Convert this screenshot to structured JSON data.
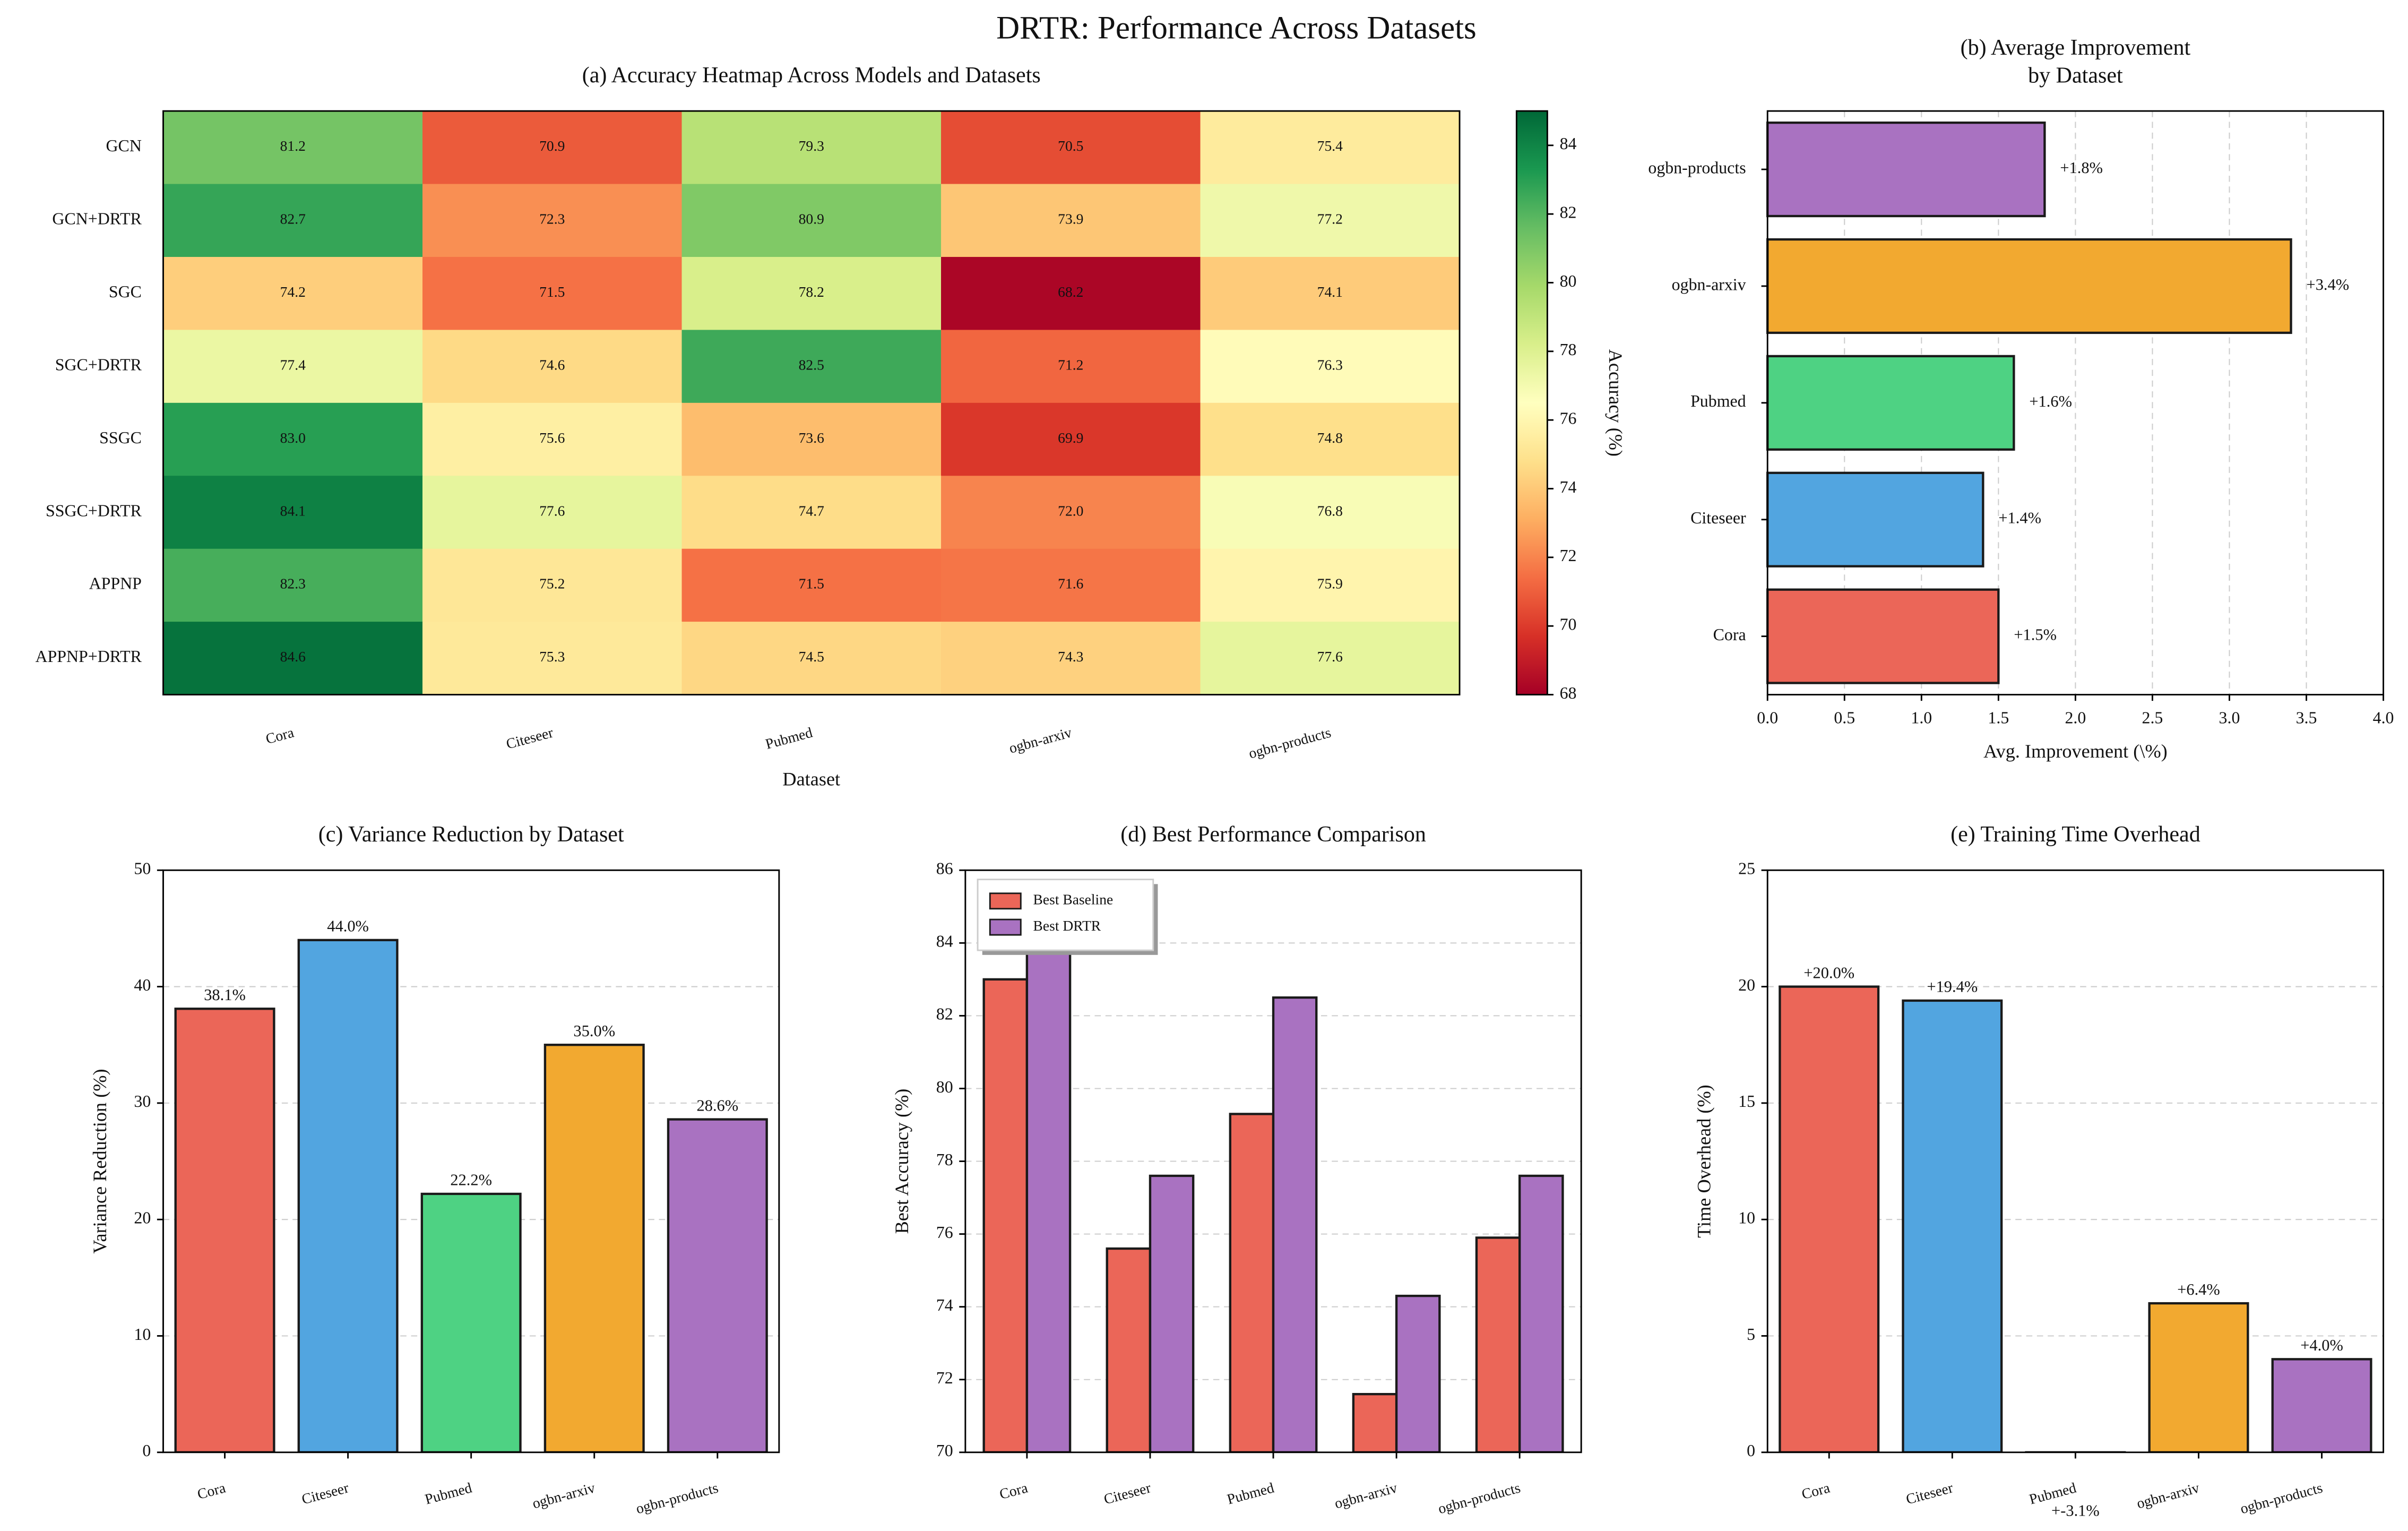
{
  "title": "DRTR: Performance Across Datasets",
  "chart_data": [
    {
      "type": "heatmap",
      "title": "(a) Accuracy Heatmap Across Models and Datasets",
      "x_categories": [
        "Cora",
        "Citeseer",
        "Pubmed",
        "ogbn-arxiv",
        "ogbn-products"
      ],
      "y_categories": [
        "GCN",
        "GCN+DRTR",
        "SGC",
        "SGC+DRTR",
        "SSGC",
        "SSGC+DRTR",
        "APPNP",
        "APPNP+DRTR"
      ],
      "values": [
        [
          81.2,
          70.9,
          79.3,
          70.5,
          75.4
        ],
        [
          82.7,
          72.3,
          80.9,
          73.9,
          77.2
        ],
        [
          74.2,
          71.5,
          78.2,
          68.2,
          74.1
        ],
        [
          77.4,
          74.6,
          82.5,
          71.2,
          76.3
        ],
        [
          83.0,
          75.6,
          73.6,
          69.9,
          74.8
        ],
        [
          84.1,
          77.6,
          74.7,
          72.0,
          76.8
        ],
        [
          82.3,
          75.2,
          71.5,
          71.6,
          75.9
        ],
        [
          84.6,
          75.3,
          74.5,
          74.3,
          77.6
        ]
      ],
      "value_labels": [
        [
          "81.2",
          "70.9",
          "79.3",
          "70.5",
          "75.4"
        ],
        [
          "82.7",
          "72.3",
          "80.9",
          "73.9",
          "77.2"
        ],
        [
          "74.2",
          "71.5",
          "78.2",
          "68.2",
          "74.1"
        ],
        [
          "77.4",
          "74.6",
          "82.5",
          "71.2",
          "76.3"
        ],
        [
          "83.0",
          "75.6",
          "73.6",
          "69.9",
          "74.8"
        ],
        [
          "84.1",
          "77.6",
          "74.7",
          "72.0",
          "76.8"
        ],
        [
          "82.3",
          "75.2",
          "71.5",
          "71.6",
          "75.9"
        ],
        [
          "84.6",
          "75.3",
          "74.5",
          "74.3",
          "77.6"
        ]
      ],
      "xlabel": "Dataset",
      "colormap": "RdYlGn",
      "colorbar_label": "Accuracy (%)",
      "zlim": [
        68,
        85
      ],
      "zticks": [
        68,
        70,
        72,
        74,
        76,
        78,
        80,
        82,
        84
      ]
    },
    {
      "type": "barh",
      "title": "(b) Average Improvement\nby Dataset",
      "categories": [
        "Cora",
        "Citeseer",
        "Pubmed",
        "ogbn-arxiv",
        "ogbn-products"
      ],
      "values": [
        1.5,
        1.4,
        1.6,
        3.4,
        1.8
      ],
      "value_labels": [
        "+1.5%",
        "+1.4%",
        "+1.6%",
        "+3.4%",
        "+1.8%"
      ],
      "colors": [
        "#eb6658",
        "#52a5e0",
        "#4ed283",
        "#f2a930",
        "#a972c1"
      ],
      "xlabel": "Avg. Improvement (\\%)",
      "xlim": [
        0,
        4
      ],
      "xticks": [
        {
          "value": 0,
          "label": "0.0"
        },
        0.5,
        {
          "value": 1,
          "label": "1.0"
        },
        1.5,
        {
          "value": 2,
          "label": "2.0"
        },
        2.5,
        {
          "value": 3,
          "label": "3.0"
        },
        3.5,
        {
          "value": 4,
          "label": "4.0"
        }
      ],
      "grid": true
    },
    {
      "type": "bar",
      "title": "(c) Variance Reduction by Dataset",
      "categories": [
        "Cora",
        "Citeseer",
        "Pubmed",
        "ogbn-arxiv",
        "ogbn-products"
      ],
      "values": [
        38.1,
        44.0,
        22.2,
        35.0,
        28.6
      ],
      "value_labels": [
        "38.1%",
        "44.0%",
        "22.2%",
        "35.0%",
        "28.6%"
      ],
      "colors": [
        "#eb6658",
        "#52a5e0",
        "#4ed283",
        "#f2a930",
        "#a972c1"
      ],
      "ylabel": "Variance Reduction (%)",
      "ylim": [
        0,
        50
      ],
      "yticks": [
        0,
        10,
        20,
        30,
        40,
        50
      ],
      "grid": true
    },
    {
      "type": "bar",
      "title": "(d) Best Performance Comparison",
      "categories": [
        "Cora",
        "Citeseer",
        "Pubmed",
        "ogbn-arxiv",
        "ogbn-products"
      ],
      "series": [
        {
          "name": "Best Baseline",
          "color": "#eb6658",
          "values": [
            83.0,
            75.6,
            79.3,
            71.6,
            75.9
          ]
        },
        {
          "name": "Best DRTR",
          "color": "#a972c1",
          "values": [
            84.6,
            77.6,
            82.5,
            74.3,
            77.6
          ]
        }
      ],
      "ylabel": "Best Accuracy (%)",
      "ylim": [
        70,
        86
      ],
      "yticks": [
        70,
        72,
        74,
        76,
        78,
        80,
        82,
        84,
        86
      ],
      "grid": true,
      "legend": "upper-left"
    },
    {
      "type": "bar",
      "title": "(e) Training Time Overhead",
      "categories": [
        "Cora",
        "Citeseer",
        "Pubmed",
        "ogbn-arxiv",
        "ogbn-products"
      ],
      "values": [
        20.0,
        19.4,
        -3.1,
        6.4,
        4.0
      ],
      "value_labels": [
        "+20.0%",
        "+19.4%",
        "+-3.1%",
        "+6.4%",
        "+4.0%"
      ],
      "colors": [
        "#eb6658",
        "#52a5e0",
        "#4ed283",
        "#f2a930",
        "#a972c1"
      ],
      "ylabel": "Time Overhead (%)",
      "ylim": [
        0,
        25
      ],
      "yticks": [
        0,
        5,
        10,
        15,
        20,
        25
      ],
      "grid": true
    }
  ]
}
